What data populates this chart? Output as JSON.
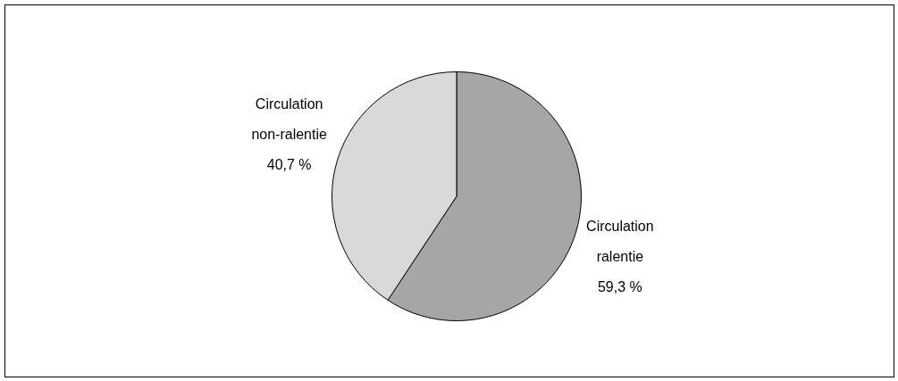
{
  "chart_data": {
    "type": "pie",
    "categories": [
      "Circulation ralentie",
      "Circulation non-ralentie"
    ],
    "values": [
      59.3,
      40.7
    ],
    "colors": [
      "#a6a6a6",
      "#d9d9d9"
    ],
    "value_labels": [
      "59,3 %",
      "40,7 %"
    ],
    "legend": false
  }
}
